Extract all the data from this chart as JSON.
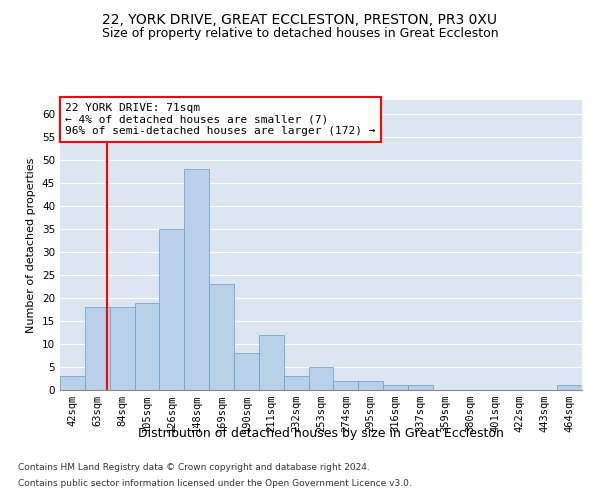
{
  "title": "22, YORK DRIVE, GREAT ECCLESTON, PRESTON, PR3 0XU",
  "subtitle": "Size of property relative to detached houses in Great Eccleston",
  "xlabel": "Distribution of detached houses by size in Great Eccleston",
  "ylabel": "Number of detached properties",
  "footnote1": "Contains HM Land Registry data © Crown copyright and database right 2024.",
  "footnote2": "Contains public sector information licensed under the Open Government Licence v3.0.",
  "categories": [
    "42sqm",
    "63sqm",
    "84sqm",
    "105sqm",
    "126sqm",
    "148sqm",
    "169sqm",
    "190sqm",
    "211sqm",
    "232sqm",
    "253sqm",
    "274sqm",
    "295sqm",
    "316sqm",
    "337sqm",
    "359sqm",
    "380sqm",
    "401sqm",
    "422sqm",
    "443sqm",
    "464sqm"
  ],
  "values": [
    3,
    18,
    18,
    19,
    35,
    48,
    23,
    8,
    12,
    3,
    5,
    2,
    2,
    1,
    1,
    0,
    0,
    0,
    0,
    0,
    1
  ],
  "bar_color": "#b8d0e8",
  "bar_edge_color": "#6699cc",
  "annotation_text": "22 YORK DRIVE: 71sqm\n← 4% of detached houses are smaller (7)\n96% of semi-detached houses are larger (172) →",
  "annotation_box_color": "white",
  "annotation_box_edge_color": "red",
  "red_line_index": 1.38,
  "ylim": [
    0,
    63
  ],
  "yticks": [
    0,
    5,
    10,
    15,
    20,
    25,
    30,
    35,
    40,
    45,
    50,
    55,
    60
  ],
  "background_color": "#dce6f0",
  "grid_color": "white",
  "title_fontsize": 10,
  "subtitle_fontsize": 9,
  "xlabel_fontsize": 9,
  "ylabel_fontsize": 8,
  "tick_fontsize": 7.5,
  "annotation_fontsize": 8,
  "footnote_fontsize": 6.5
}
